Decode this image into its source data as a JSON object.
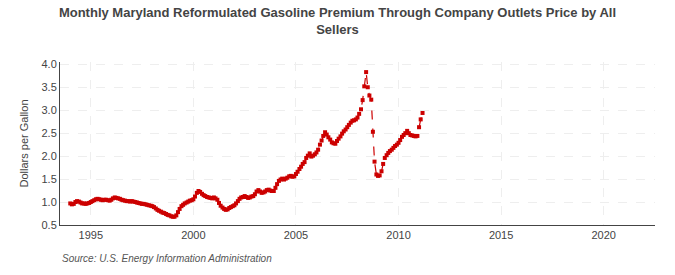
{
  "chart_data": {
    "type": "line",
    "title": "Monthly Maryland Reformulated Gasoline Premium Through Company Outlets Price by All\nSellers",
    "ylabel": "Dollars per Gallon",
    "annotations": [
      "Source: U.S. Energy Information Administration"
    ],
    "color": "#cc0000",
    "marker": "square",
    "line_style": "dashed",
    "grid": true,
    "xlim": [
      1993.5,
      2022.5
    ],
    "ylim": [
      0.5,
      4.05
    ],
    "xticks": [
      1995,
      2000,
      2005,
      2010,
      2015,
      2020
    ],
    "yticks": [
      0.5,
      {
        "value": 1.0,
        "label": "1.0"
      },
      1.5,
      {
        "value": 2.0,
        "label": "2.0"
      },
      2.5,
      {
        "value": 3.0,
        "label": "3.0"
      },
      3.5,
      {
        "value": 4.0,
        "label": "4.0"
      }
    ],
    "x": [
      1994.0,
      1994.08,
      1994.17,
      1994.25,
      1994.33,
      1994.42,
      1994.5,
      1994.58,
      1994.67,
      1994.75,
      1994.83,
      1994.92,
      1995.0,
      1995.08,
      1995.17,
      1995.25,
      1995.33,
      1995.42,
      1995.5,
      1995.58,
      1995.67,
      1995.75,
      1995.83,
      1995.92,
      1996.0,
      1996.08,
      1996.17,
      1996.25,
      1996.33,
      1996.42,
      1996.5,
      1996.58,
      1996.67,
      1996.75,
      1996.83,
      1996.92,
      1997.0,
      1997.08,
      1997.17,
      1997.25,
      1997.33,
      1997.42,
      1997.5,
      1997.58,
      1997.67,
      1997.75,
      1997.83,
      1997.92,
      1998.0,
      1998.08,
      1998.17,
      1998.25,
      1998.33,
      1998.42,
      1998.5,
      1998.58,
      1998.67,
      1998.75,
      1998.83,
      1998.92,
      1999.0,
      1999.08,
      1999.17,
      1999.25,
      1999.33,
      1999.42,
      1999.5,
      1999.58,
      1999.67,
      1999.75,
      1999.83,
      1999.92,
      2000.0,
      2000.08,
      2000.17,
      2000.25,
      2000.33,
      2000.42,
      2000.5,
      2000.58,
      2000.67,
      2000.75,
      2000.83,
      2000.92,
      2001.0,
      2001.08,
      2001.17,
      2001.25,
      2001.33,
      2001.42,
      2001.5,
      2001.58,
      2001.67,
      2001.75,
      2001.83,
      2001.92,
      2002.0,
      2002.08,
      2002.17,
      2002.25,
      2002.33,
      2002.42,
      2002.5,
      2002.58,
      2002.67,
      2002.75,
      2002.83,
      2002.92,
      2003.0,
      2003.08,
      2003.17,
      2003.25,
      2003.33,
      2003.42,
      2003.5,
      2003.58,
      2003.67,
      2003.75,
      2003.83,
      2003.92,
      2004.0,
      2004.08,
      2004.17,
      2004.25,
      2004.33,
      2004.42,
      2004.5,
      2004.58,
      2004.67,
      2004.75,
      2004.83,
      2004.92,
      2005.0,
      2005.08,
      2005.17,
      2005.25,
      2005.33,
      2005.42,
      2005.5,
      2005.58,
      2005.67,
      2005.75,
      2005.83,
      2005.92,
      2006.0,
      2006.08,
      2006.17,
      2006.25,
      2006.33,
      2006.42,
      2006.5,
      2006.58,
      2006.67,
      2006.75,
      2006.83,
      2006.92,
      2007.0,
      2007.08,
      2007.17,
      2007.25,
      2007.33,
      2007.42,
      2007.5,
      2007.58,
      2007.67,
      2007.75,
      2007.83,
      2007.92,
      2008.0,
      2008.08,
      2008.17,
      2008.25,
      2008.33,
      2008.42,
      2008.5,
      2008.58,
      2008.67,
      2008.75,
      2008.83,
      2008.92,
      2009.0,
      2009.08,
      2009.17,
      2009.25,
      2009.33,
      2009.42,
      2009.5,
      2009.58,
      2009.67,
      2009.75,
      2009.83,
      2009.92,
      2010.0,
      2010.08,
      2010.17,
      2010.25,
      2010.33,
      2010.42,
      2010.5,
      2010.58,
      2010.67,
      2010.75,
      2010.83,
      2010.92,
      2011.0,
      2011.08,
      2011.17
    ],
    "values": [
      0.97,
      0.95,
      0.96,
      1.0,
      1.02,
      1.01,
      0.99,
      0.97,
      0.97,
      0.96,
      0.97,
      0.98,
      1.0,
      1.02,
      1.04,
      1.06,
      1.07,
      1.06,
      1.05,
      1.04,
      1.05,
      1.05,
      1.04,
      1.03,
      1.05,
      1.08,
      1.1,
      1.09,
      1.08,
      1.07,
      1.05,
      1.04,
      1.03,
      1.02,
      1.02,
      1.01,
      1.02,
      1.01,
      1.0,
      0.99,
      0.98,
      0.97,
      0.96,
      0.96,
      0.95,
      0.94,
      0.93,
      0.92,
      0.91,
      0.89,
      0.86,
      0.83,
      0.81,
      0.79,
      0.77,
      0.76,
      0.74,
      0.72,
      0.71,
      0.69,
      0.68,
      0.68,
      0.71,
      0.78,
      0.85,
      0.91,
      0.94,
      0.97,
      0.99,
      1.01,
      1.03,
      1.04,
      1.06,
      1.12,
      1.2,
      1.24,
      1.22,
      1.18,
      1.15,
      1.13,
      1.11,
      1.1,
      1.09,
      1.08,
      1.1,
      1.08,
      1.05,
      0.98,
      0.92,
      0.88,
      0.85,
      0.83,
      0.84,
      0.87,
      0.89,
      0.91,
      0.93,
      0.97,
      1.02,
      1.07,
      1.1,
      1.11,
      1.13,
      1.11,
      1.09,
      1.1,
      1.12,
      1.13,
      1.17,
      1.23,
      1.26,
      1.23,
      1.2,
      1.21,
      1.23,
      1.26,
      1.27,
      1.25,
      1.24,
      1.24,
      1.31,
      1.39,
      1.46,
      1.49,
      1.51,
      1.49,
      1.51,
      1.53,
      1.56,
      1.57,
      1.55,
      1.56,
      1.61,
      1.66,
      1.72,
      1.77,
      1.83,
      1.87,
      1.96,
      2.01,
      2.06,
      1.99,
      2.01,
      2.04,
      2.08,
      2.14,
      2.25,
      2.34,
      2.44,
      2.52,
      2.47,
      2.41,
      2.36,
      2.3,
      2.28,
      2.27,
      2.33,
      2.38,
      2.43,
      2.49,
      2.54,
      2.58,
      2.63,
      2.68,
      2.73,
      2.77,
      2.78,
      2.8,
      2.84,
      2.92,
      3.02,
      3.22,
      3.52,
      3.83,
      3.5,
      3.32,
      3.23,
      2.53,
      1.88,
      1.6,
      1.57,
      1.58,
      1.67,
      1.83,
      1.96,
      2.02,
      2.07,
      2.11,
      2.14,
      2.18,
      2.22,
      2.25,
      2.29,
      2.35,
      2.42,
      2.46,
      2.5,
      2.55,
      2.5,
      2.46,
      2.45,
      2.44,
      2.43,
      2.44,
      2.63,
      2.8,
      2.94
    ]
  }
}
